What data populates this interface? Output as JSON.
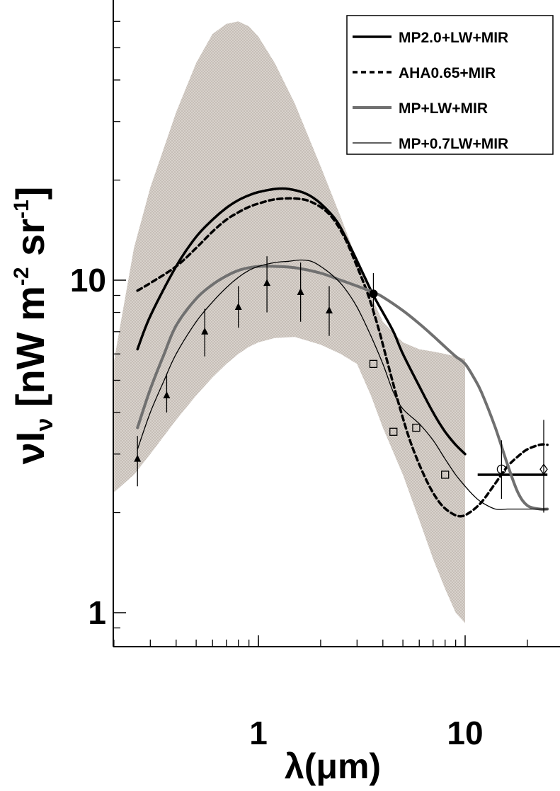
{
  "chart_data": {
    "type": "line",
    "title": "",
    "xlabel": "λ(μm)",
    "ylabel": "νIν [nW m⁻² sr⁻¹]",
    "ylabel_parts": {
      "nu": "ν",
      "I": "I",
      "sub_nu": "ν",
      "unit_open": " [nW m",
      "exp1": "-2",
      "mid": " sr",
      "exp2": "-1",
      "unit_close": "]"
    },
    "xscale": "log",
    "yscale": "log",
    "xlim": [
      0.2,
      30
    ],
    "ylim": [
      0.9,
      60
    ],
    "x_ticks": [
      {
        "value": 1,
        "label": "1"
      },
      {
        "value": 10,
        "label": "10"
      }
    ],
    "y_ticks": [
      {
        "value": 1,
        "label": "1"
      },
      {
        "value": 10,
        "label": "10"
      }
    ],
    "grid": false,
    "legend_position": "top-right",
    "band": {
      "x": [
        0.2,
        0.25,
        0.3,
        0.4,
        0.5,
        0.6,
        0.7,
        0.8,
        0.9,
        1.0,
        1.2,
        1.5,
        2.0,
        2.5,
        3.0,
        3.5,
        4.0,
        5.0,
        6.0,
        7.0,
        8.0,
        9.0,
        10.0
      ],
      "upper": [
        5.7,
        12.5,
        19,
        32,
        45,
        55,
        59,
        60,
        58,
        54,
        45,
        34,
        22,
        15.5,
        11.5,
        9,
        7.5,
        6.5,
        6.2,
        6.1,
        6.0,
        5.9,
        5.8
      ],
      "lower": [
        2.3,
        2.6,
        3.0,
        3.8,
        4.5,
        5.1,
        5.6,
        6.0,
        6.3,
        6.5,
        6.7,
        6.75,
        6.4,
        6.0,
        5.6,
        4.5,
        3.6,
        2.6,
        1.9,
        1.45,
        1.18,
        1.0,
        0.93
      ]
    },
    "series": [
      {
        "name": "MP2.0+LW+MIR",
        "style": "thick-solid",
        "color": "#000000",
        "x": [
          0.26,
          0.3,
          0.4,
          0.5,
          0.6,
          0.7,
          0.8,
          0.9,
          1.0,
          1.2,
          1.4,
          1.7,
          2.0,
          2.4,
          2.8,
          3.2,
          3.6,
          4.0,
          4.5,
          5.0,
          6.0,
          7.0,
          8.0,
          9.0,
          10.0
        ],
        "y": [
          6.2,
          7.8,
          11.0,
          13.5,
          15.2,
          16.5,
          17.4,
          18.0,
          18.4,
          18.8,
          18.8,
          18.2,
          17.0,
          15.0,
          12.5,
          10.5,
          9.0,
          8.0,
          7.0,
          6.0,
          4.8,
          4.0,
          3.5,
          3.2,
          3.0
        ],
        "tail_x": [
          11.5,
          14,
          17,
          20,
          25
        ],
        "tail_y": [
          2.6,
          2.6,
          2.6,
          2.6,
          2.6
        ]
      },
      {
        "name": "AHA0.65+MIR",
        "style": "dashed",
        "color": "#000000",
        "x": [
          0.26,
          0.3,
          0.4,
          0.5,
          0.6,
          0.7,
          0.8,
          0.9,
          1.0,
          1.2,
          1.5,
          1.8,
          2.2,
          2.6,
          3.0,
          3.4,
          3.8,
          4.2,
          4.8,
          5.5,
          6.5,
          7.5,
          8.5,
          9.5,
          10.5,
          12,
          14,
          16,
          18,
          20,
          23,
          25
        ],
        "y": [
          9.3,
          9.8,
          11.0,
          12.5,
          14.0,
          15.2,
          16.0,
          16.6,
          17.0,
          17.5,
          17.6,
          17.2,
          15.8,
          13.5,
          11.0,
          9.0,
          7.2,
          5.7,
          4.2,
          3.2,
          2.5,
          2.15,
          2.0,
          1.95,
          2.0,
          2.15,
          2.45,
          2.75,
          2.95,
          3.1,
          3.2,
          3.2
        ]
      },
      {
        "name": "MP+LW+MIR",
        "style": "thick-gray",
        "color": "#707070",
        "x": [
          0.26,
          0.3,
          0.35,
          0.4,
          0.5,
          0.6,
          0.7,
          0.8,
          0.9,
          1.0,
          1.2,
          1.5,
          2.0,
          2.5,
          3.0,
          3.6,
          4.0,
          5.0,
          6.0,
          7.0,
          8.0,
          9.0,
          10.0,
          11.0,
          12.0,
          14.0,
          16.0,
          18.0,
          20.0,
          23.0,
          25.0
        ],
        "y": [
          3.6,
          4.7,
          6.0,
          7.3,
          8.8,
          9.7,
          10.3,
          10.7,
          10.9,
          11.0,
          11.0,
          10.9,
          10.5,
          10.0,
          9.6,
          9.2,
          8.9,
          8.1,
          7.4,
          6.8,
          6.3,
          5.9,
          5.6,
          5.1,
          4.6,
          3.6,
          2.8,
          2.3,
          2.1,
          2.05,
          2.05
        ]
      },
      {
        "name": "MP+0.7LW+MIR",
        "style": "thin-solid",
        "color": "#000000",
        "x": [
          0.26,
          0.3,
          0.35,
          0.4,
          0.5,
          0.6,
          0.7,
          0.8,
          0.9,
          1.0,
          1.2,
          1.4,
          1.6,
          1.8,
          2.0,
          2.3,
          2.6,
          3.0,
          3.5,
          4.0,
          4.5,
          5.0,
          6.0,
          7.0,
          8.0,
          9.0,
          10.0,
          11.0,
          12.0,
          14.0,
          16.0,
          18.0,
          20.0,
          23.0,
          25.0
        ],
        "y": [
          3.1,
          4.0,
          5.0,
          6.0,
          7.5,
          8.6,
          9.5,
          10.2,
          10.7,
          11.0,
          11.3,
          11.4,
          11.5,
          11.4,
          11.0,
          10.3,
          9.5,
          8.3,
          6.8,
          5.6,
          4.6,
          4.1,
          3.7,
          3.3,
          2.9,
          2.6,
          2.4,
          2.25,
          2.15,
          2.05,
          2.05,
          2.05,
          2.05,
          2.05,
          2.05
        ]
      }
    ],
    "data_points": [
      {
        "marker": "triangle",
        "x": 0.26,
        "y": 2.9,
        "y_low": 2.4,
        "y_high": 3.4
      },
      {
        "marker": "triangle",
        "x": 0.36,
        "y": 4.5,
        "y_low": 4.0,
        "y_high": 5.2
      },
      {
        "marker": "triangle",
        "x": 0.55,
        "y": 7.0,
        "y_low": 5.9,
        "y_high": 8.2
      },
      {
        "marker": "triangle",
        "x": 0.8,
        "y": 8.3,
        "y_low": 7.2,
        "y_high": 9.6
      },
      {
        "marker": "triangle",
        "x": 1.1,
        "y": 9.8,
        "y_low": 8.0,
        "y_high": 11.8
      },
      {
        "marker": "triangle",
        "x": 1.6,
        "y": 9.2,
        "y_low": 7.5,
        "y_high": 11.3
      },
      {
        "marker": "triangle",
        "x": 2.2,
        "y": 8.1,
        "y_low": 6.8,
        "y_high": 9.6
      },
      {
        "marker": "circle-filled",
        "x": 3.6,
        "y": 9.1,
        "y_low": 7.8,
        "y_high": 10.5
      },
      {
        "marker": "square-open",
        "x": 3.6,
        "y": 5.6
      },
      {
        "marker": "square-open",
        "x": 4.5,
        "y": 3.5
      },
      {
        "marker": "square-open",
        "x": 5.8,
        "y": 3.6
      },
      {
        "marker": "square-open",
        "x": 8.0,
        "y": 2.6
      },
      {
        "marker": "circle-open",
        "x": 15.0,
        "y": 2.7,
        "y_low": 2.2,
        "y_high": 3.3
      },
      {
        "marker": "diamond-open",
        "x": 24.0,
        "y": 2.7,
        "y_low": 2.0,
        "y_high": 3.8
      }
    ]
  }
}
